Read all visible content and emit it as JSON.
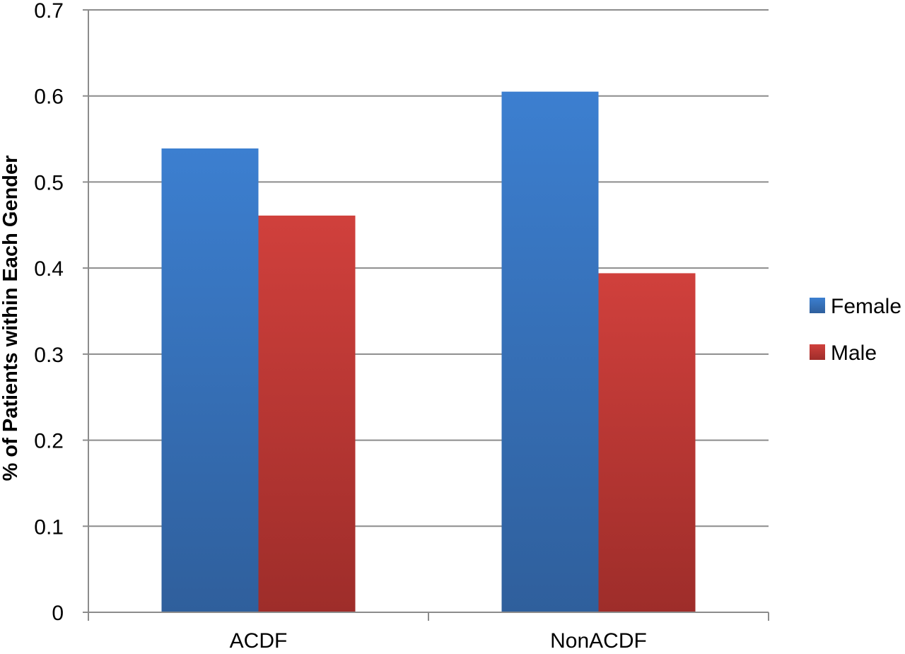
{
  "chart_data": {
    "type": "bar",
    "title": "",
    "xlabel": "",
    "ylabel": "% of Patients within Each Gender",
    "categories": [
      "ACDF",
      "NonACDF"
    ],
    "series": [
      {
        "name": "Female",
        "values": [
          0.539,
          0.605
        ],
        "color": "#3a78c9"
      },
      {
        "name": "Male",
        "values": [
          0.461,
          0.394
        ],
        "color": "#c93a36"
      }
    ],
    "ylim": [
      0,
      0.7
    ],
    "yticks": [
      "0",
      "0.1",
      "0.2",
      "0.3",
      "0.4",
      "0.5",
      "0.6",
      "0.7"
    ],
    "grid": true,
    "legend_position": "right"
  }
}
